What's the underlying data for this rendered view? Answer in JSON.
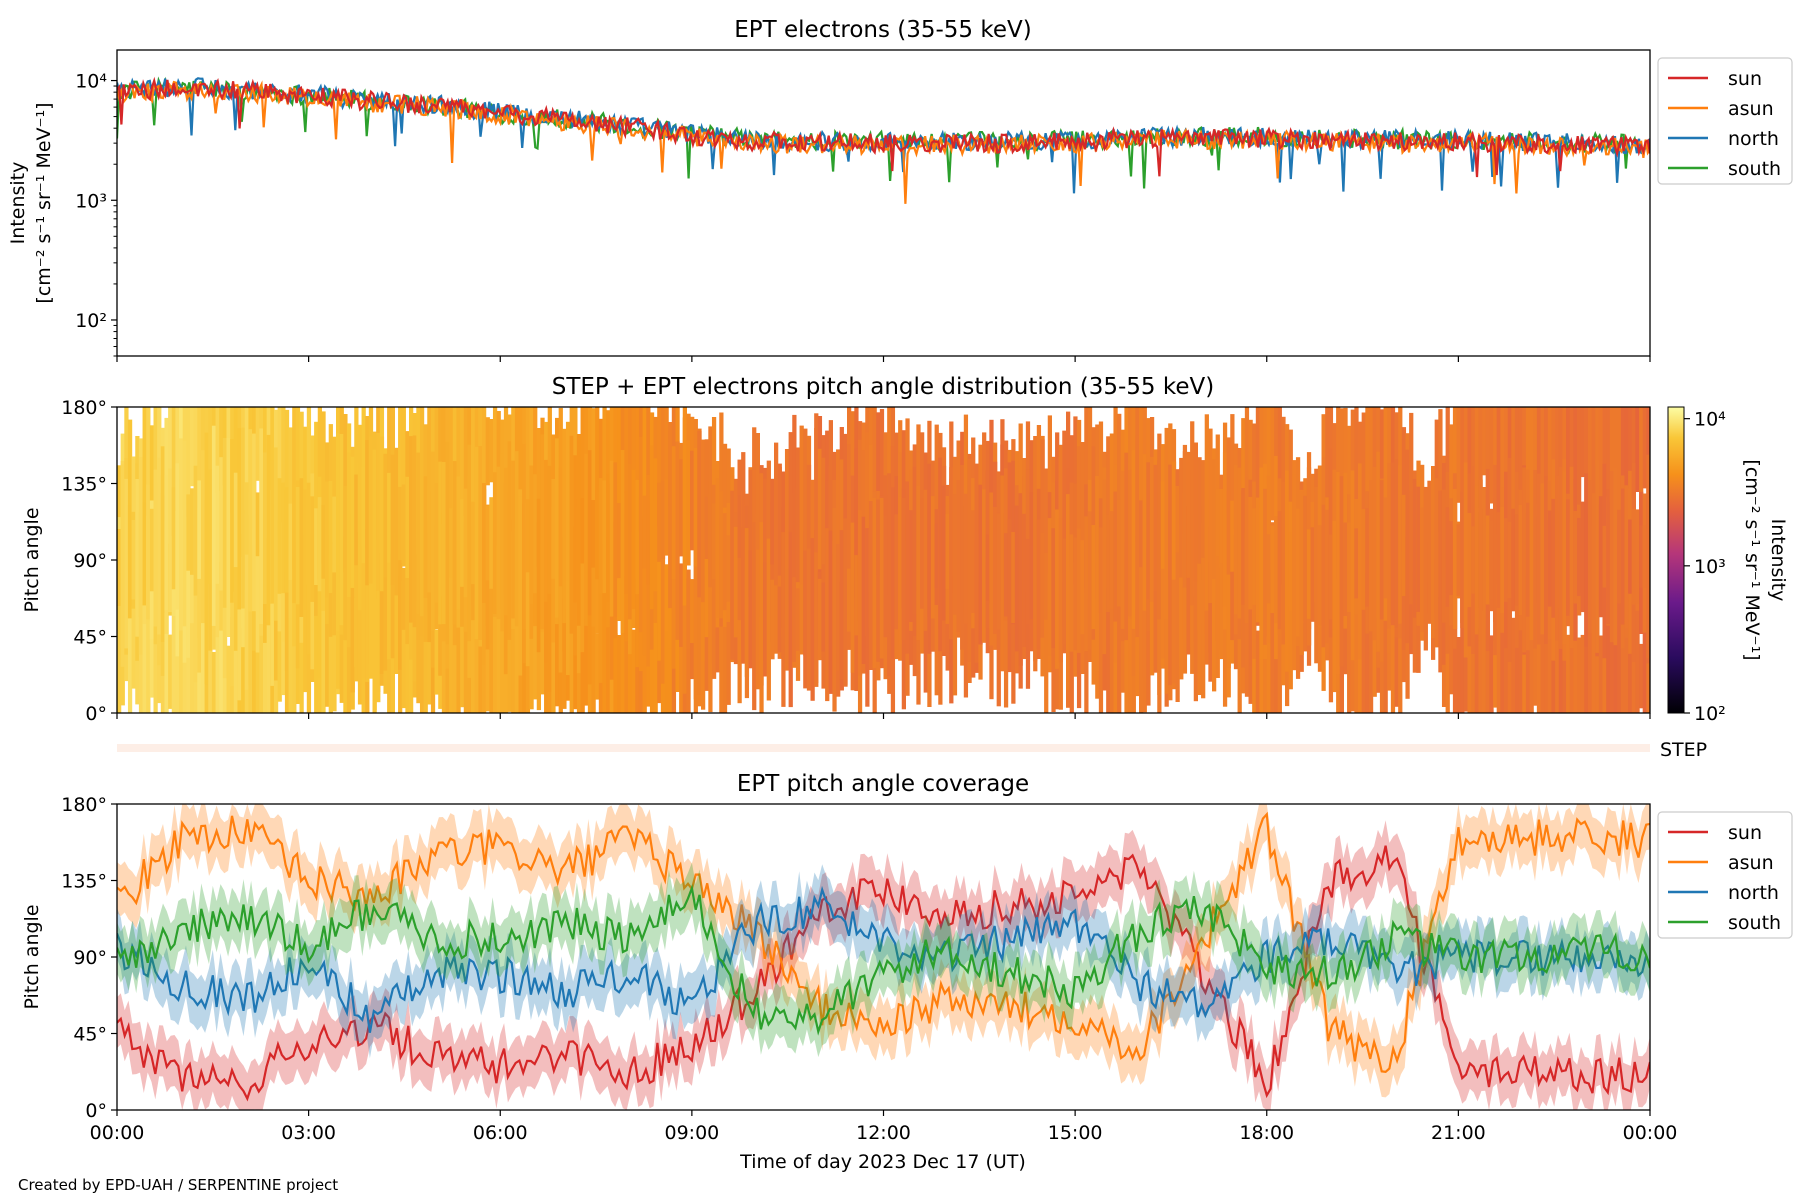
{
  "footer": "Created by EPD-UAH / SERPENTINE project",
  "xlabel": "Time of day 2023 Dec 17 (UT)",
  "xticks": [
    "00:00",
    "03:00",
    "06:00",
    "09:00",
    "12:00",
    "15:00",
    "18:00",
    "21:00",
    "00:00"
  ],
  "colors": {
    "sun": "#d62728",
    "asun": "#ff7f0e",
    "north": "#1f77b4",
    "south": "#2ca02c"
  },
  "chart_data": [
    {
      "type": "line",
      "title": "EPT electrons (35-55 keV)",
      "ylabel_line1": "Intensity",
      "ylabel_line2": "[cm⁻² s⁻¹ sr⁻¹ MeV⁻¹]",
      "yscale": "log",
      "ylim": [
        50,
        18000
      ],
      "yticks": [
        "10²",
        "10³",
        "10⁴"
      ],
      "x_hours": [
        0,
        1,
        2,
        3,
        4,
        5,
        6,
        7,
        8,
        9,
        10,
        11,
        12,
        13,
        14,
        15,
        16,
        17,
        18,
        19,
        20,
        21,
        22,
        23,
        24
      ],
      "series": [
        {
          "name": "sun",
          "values": [
            8000,
            8600,
            8200,
            7400,
            6700,
            6200,
            5300,
            4800,
            4100,
            3500,
            3100,
            3000,
            3000,
            3000,
            3000,
            3100,
            3300,
            3300,
            3300,
            3200,
            3100,
            3100,
            3000,
            2900,
            2800
          ]
        },
        {
          "name": "asun",
          "values": [
            7800,
            8300,
            7900,
            7200,
            6500,
            6000,
            5100,
            4600,
            4000,
            3400,
            3000,
            2900,
            2900,
            2900,
            3000,
            3000,
            3200,
            3200,
            3200,
            3100,
            3000,
            3000,
            2900,
            2800,
            2700
          ]
        },
        {
          "name": "north",
          "values": [
            8200,
            8800,
            8400,
            7600,
            6800,
            6300,
            5400,
            4900,
            4200,
            3600,
            3200,
            3100,
            3100,
            3100,
            3100,
            3200,
            3400,
            3400,
            3400,
            3300,
            3200,
            3200,
            3100,
            3000,
            2900
          ]
        },
        {
          "name": "south",
          "values": [
            8100,
            8700,
            8300,
            7500,
            6700,
            6200,
            5300,
            4800,
            4200,
            3600,
            3200,
            3100,
            3100,
            3100,
            3100,
            3200,
            3400,
            3400,
            3400,
            3300,
            3200,
            3200,
            3100,
            3000,
            2900
          ]
        }
      ],
      "legend": {
        "position": "outside-right",
        "entries": [
          "sun",
          "asun",
          "north",
          "south"
        ]
      }
    },
    {
      "type": "heatmap",
      "title": "STEP + EPT electrons pitch angle distribution (35-55 keV)",
      "ylabel": "Pitch angle",
      "ylim": [
        0,
        180
      ],
      "yticks": [
        "0°",
        "45°",
        "90°",
        "135°",
        "180°"
      ],
      "colorbar": {
        "label": "Intensity",
        "units": "[cm⁻² s⁻¹ sr⁻¹ MeV⁻¹]",
        "scale": "log",
        "range": [
          100,
          12000
        ],
        "ticks": [
          "10²",
          "10³",
          "10⁴"
        ]
      },
      "x_hours": [
        0,
        1,
        2,
        3,
        4,
        5,
        6,
        7,
        8,
        9,
        10,
        11,
        12,
        13,
        14,
        15,
        16,
        17,
        18,
        19,
        20,
        21,
        22,
        23,
        24
      ],
      "intensity": [
        8000,
        8600,
        8200,
        7400,
        6700,
        6200,
        5300,
        4800,
        4100,
        3500,
        3100,
        3000,
        3000,
        3000,
        3000,
        3100,
        3300,
        3300,
        3300,
        3200,
        3100,
        3100,
        3000,
        2900,
        2800
      ]
    },
    {
      "type": "bar",
      "label": "STEP",
      "note": "empty STEP coverage strip"
    },
    {
      "type": "line",
      "title": "EPT pitch angle coverage",
      "ylabel": "Pitch angle",
      "ylim": [
        0,
        180
      ],
      "yticks": [
        "0°",
        "45°",
        "90°",
        "135°",
        "180°"
      ],
      "x_hours": [
        0,
        1,
        2,
        3,
        4,
        5,
        6,
        7,
        8,
        9,
        10,
        11,
        12,
        13,
        14,
        15,
        16,
        17,
        18,
        19,
        20,
        21,
        22,
        23,
        24
      ],
      "series": [
        {
          "name": "sun",
          "values": [
            45,
            20,
            15,
            40,
            50,
            30,
            25,
            35,
            20,
            40,
            70,
            120,
            130,
            115,
            120,
            125,
            145,
            80,
            15,
            135,
            150,
            20,
            25,
            20,
            22
          ]
        },
        {
          "name": "asun",
          "values": [
            120,
            160,
            165,
            135,
            125,
            150,
            155,
            140,
            160,
            135,
            105,
            60,
            50,
            65,
            60,
            55,
            35,
            100,
            165,
            45,
            30,
            160,
            160,
            162,
            158
          ]
        },
        {
          "name": "north",
          "values": [
            95,
            75,
            65,
            85,
            55,
            80,
            80,
            70,
            80,
            60,
            110,
            120,
            100,
            90,
            100,
            110,
            75,
            60,
            90,
            100,
            80,
            90,
            90,
            90,
            88
          ]
        },
        {
          "name": "south",
          "values": [
            85,
            105,
            115,
            95,
            120,
            100,
            100,
            110,
            100,
            125,
            55,
            55,
            80,
            95,
            80,
            70,
            105,
            120,
            85,
            80,
            100,
            90,
            90,
            92,
            92
          ]
        }
      ],
      "legend": {
        "position": "outside-right",
        "entries": [
          "sun",
          "asun",
          "north",
          "south"
        ]
      }
    }
  ]
}
